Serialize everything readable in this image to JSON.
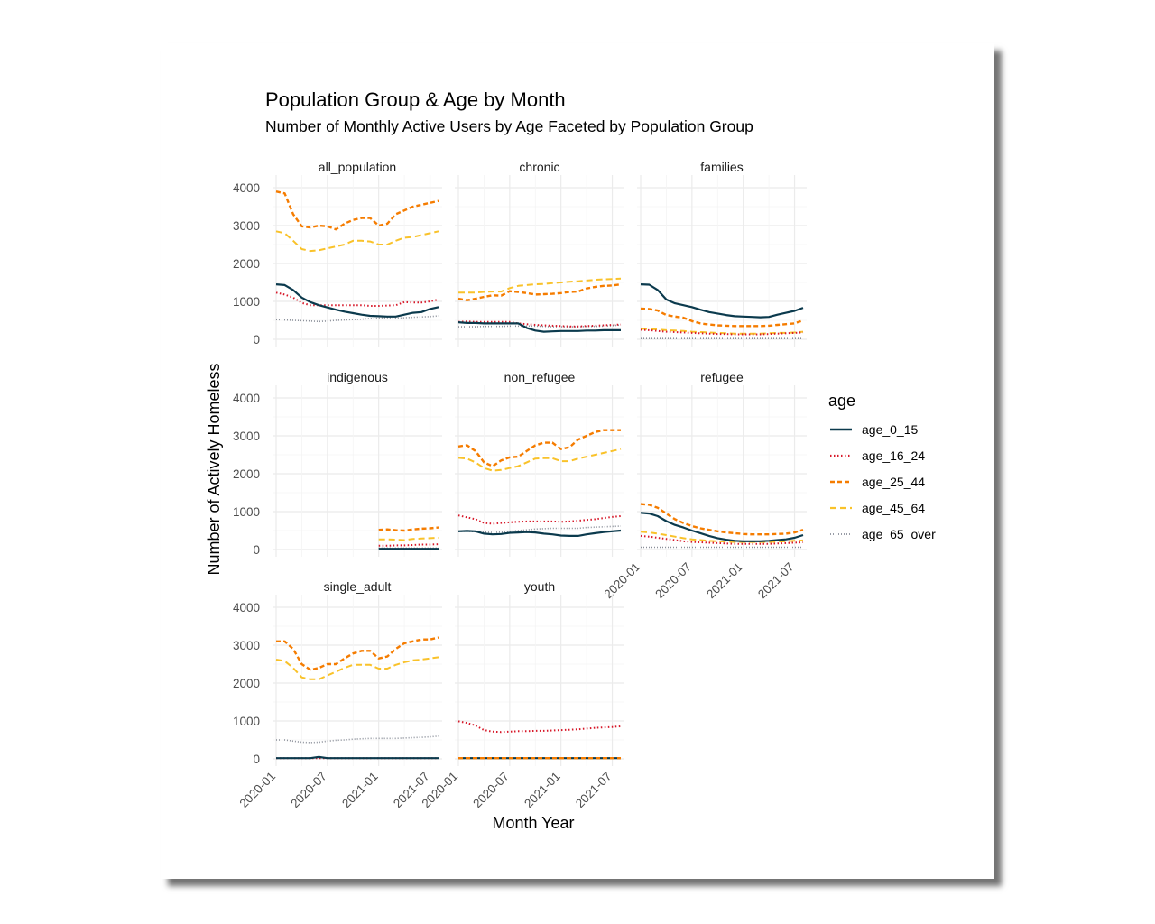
{
  "chart_data": {
    "type": "line",
    "title": "Population Group & Age by Month",
    "subtitle": "Number of Monthly Active Users by Age Faceted by Population Group",
    "xlabel": "Month Year",
    "ylabel": "Number of Actively Homeless",
    "x_ticks": [
      "2020-01",
      "2020-07",
      "2021-01",
      "2021-07"
    ],
    "y_ticks": [
      0,
      1000,
      2000,
      3000,
      4000
    ],
    "ylim": [
      0,
      4000
    ],
    "x_months": [
      "2020-01",
      "2020-02",
      "2020-03",
      "2020-04",
      "2020-05",
      "2020-06",
      "2020-07",
      "2020-08",
      "2020-09",
      "2020-10",
      "2020-11",
      "2020-12",
      "2021-01",
      "2021-02",
      "2021-03",
      "2021-04",
      "2021-05",
      "2021-06",
      "2021-07",
      "2021-08"
    ],
    "legend": {
      "title": "age",
      "position": "right",
      "entries": [
        {
          "name": "age_0_15",
          "color": "#0b3a4d",
          "dash": "solid"
        },
        {
          "name": "age_16_24",
          "color": "#d7192a",
          "dash": "dotted"
        },
        {
          "name": "age_25_44",
          "color": "#f57c00",
          "dash": "dashed"
        },
        {
          "name": "age_45_64",
          "color": "#f9c22a",
          "dash": "longdash"
        },
        {
          "name": "age_65_over",
          "color": "#8a8f99",
          "dash": "finedot"
        }
      ]
    },
    "facets": [
      {
        "name": "all_population",
        "series": {
          "age_0_15": [
            1450,
            1430,
            1300,
            1100,
            980,
            900,
            840,
            780,
            730,
            690,
            650,
            620,
            610,
            600,
            600,
            650,
            700,
            720,
            800,
            850
          ],
          "age_16_24": [
            1230,
            1180,
            1100,
            960,
            900,
            900,
            900,
            900,
            900,
            900,
            900,
            880,
            880,
            890,
            900,
            980,
            970,
            970,
            1000,
            1050
          ],
          "age_25_44": [
            3900,
            3850,
            3300,
            2980,
            2950,
            3000,
            2980,
            2900,
            3050,
            3150,
            3200,
            3200,
            3000,
            3050,
            3300,
            3400,
            3500,
            3550,
            3600,
            3650
          ],
          "age_45_64": [
            2850,
            2800,
            2600,
            2380,
            2330,
            2350,
            2400,
            2450,
            2500,
            2600,
            2600,
            2580,
            2500,
            2500,
            2600,
            2680,
            2700,
            2750,
            2800,
            2850
          ],
          "age_65_over": [
            520,
            510,
            500,
            490,
            480,
            470,
            480,
            500,
            510,
            520,
            530,
            550,
            560,
            570,
            560,
            570,
            580,
            590,
            600,
            620
          ]
        }
      },
      {
        "name": "chronic",
        "series": {
          "age_0_15": [
            450,
            430,
            430,
            420,
            420,
            420,
            420,
            420,
            300,
            230,
            200,
            210,
            220,
            220,
            220,
            230,
            230,
            240,
            240,
            240
          ],
          "age_16_24": [
            460,
            470,
            460,
            460,
            460,
            460,
            460,
            420,
            400,
            380,
            370,
            360,
            350,
            340,
            340,
            350,
            360,
            370,
            380,
            390
          ],
          "age_25_44": [
            1070,
            1030,
            1070,
            1120,
            1160,
            1150,
            1270,
            1250,
            1220,
            1180,
            1190,
            1200,
            1220,
            1250,
            1260,
            1340,
            1380,
            1410,
            1420,
            1450
          ],
          "age_45_64": [
            1230,
            1230,
            1230,
            1250,
            1260,
            1260,
            1350,
            1410,
            1430,
            1450,
            1460,
            1480,
            1500,
            1520,
            1530,
            1550,
            1570,
            1580,
            1590,
            1600
          ],
          "age_65_over": [
            330,
            330,
            330,
            340,
            340,
            340,
            350,
            350,
            350,
            350,
            340,
            330,
            330,
            330,
            330,
            340,
            340,
            350,
            360,
            380
          ]
        }
      },
      {
        "name": "families",
        "series": {
          "age_0_15": [
            1450,
            1440,
            1300,
            1050,
            950,
            900,
            850,
            780,
            720,
            680,
            640,
            610,
            600,
            590,
            580,
            590,
            650,
            700,
            750,
            830
          ],
          "age_16_24": [
            250,
            240,
            220,
            200,
            190,
            180,
            170,
            160,
            150,
            140,
            140,
            130,
            130,
            130,
            130,
            140,
            150,
            160,
            170,
            180
          ],
          "age_25_44": [
            810,
            800,
            760,
            640,
            600,
            570,
            480,
            420,
            390,
            370,
            360,
            350,
            350,
            350,
            350,
            360,
            380,
            400,
            420,
            500
          ],
          "age_45_64": [
            280,
            270,
            260,
            240,
            230,
            220,
            200,
            190,
            180,
            170,
            160,
            150,
            150,
            150,
            150,
            160,
            170,
            170,
            180,
            200
          ],
          "age_65_over": [
            20,
            20,
            20,
            20,
            20,
            20,
            20,
            20,
            20,
            20,
            20,
            20,
            20,
            20,
            20,
            20,
            20,
            20,
            20,
            20
          ]
        }
      },
      {
        "name": "indigenous",
        "series": {
          "age_0_15": [
            null,
            null,
            null,
            null,
            null,
            null,
            null,
            null,
            null,
            null,
            null,
            null,
            20,
            20,
            20,
            20,
            20,
            20,
            20,
            20
          ],
          "age_16_24": [
            null,
            null,
            null,
            null,
            null,
            null,
            null,
            null,
            null,
            null,
            null,
            null,
            100,
            100,
            110,
            110,
            120,
            130,
            130,
            140
          ],
          "age_25_44": [
            null,
            null,
            null,
            null,
            null,
            null,
            null,
            null,
            null,
            null,
            null,
            null,
            520,
            530,
            510,
            500,
            530,
            550,
            560,
            580
          ],
          "age_45_64": [
            null,
            null,
            null,
            null,
            null,
            null,
            null,
            null,
            null,
            null,
            null,
            null,
            270,
            270,
            260,
            250,
            280,
            290,
            300,
            310
          ],
          "age_65_over": [
            null,
            null,
            null,
            null,
            null,
            null,
            null,
            null,
            null,
            null,
            null,
            null,
            40,
            40,
            40,
            40,
            40,
            40,
            40,
            40
          ]
        }
      },
      {
        "name": "non_refugee",
        "series": {
          "age_0_15": [
            480,
            490,
            480,
            420,
            400,
            410,
            440,
            450,
            460,
            450,
            420,
            400,
            370,
            360,
            360,
            400,
            430,
            460,
            480,
            500
          ],
          "age_16_24": [
            900,
            850,
            800,
            700,
            680,
            700,
            720,
            730,
            740,
            740,
            740,
            740,
            730,
            740,
            760,
            780,
            800,
            830,
            860,
            880
          ],
          "age_25_44": [
            2720,
            2750,
            2600,
            2300,
            2200,
            2350,
            2430,
            2450,
            2600,
            2750,
            2820,
            2820,
            2650,
            2700,
            2900,
            3000,
            3100,
            3150,
            3150,
            3150
          ],
          "age_45_64": [
            2420,
            2400,
            2300,
            2150,
            2080,
            2100,
            2150,
            2200,
            2300,
            2400,
            2410,
            2410,
            2330,
            2330,
            2400,
            2450,
            2500,
            2550,
            2600,
            2650
          ],
          "age_65_over": [
            480,
            480,
            470,
            460,
            450,
            460,
            480,
            500,
            520,
            540,
            550,
            560,
            560,
            560,
            560,
            580,
            590,
            600,
            610,
            620
          ]
        }
      },
      {
        "name": "refugee",
        "series": {
          "age_0_15": [
            970,
            950,
            880,
            750,
            650,
            580,
            500,
            430,
            360,
            300,
            260,
            230,
            220,
            220,
            220,
            230,
            250,
            270,
            310,
            380
          ],
          "age_16_24": [
            360,
            340,
            310,
            280,
            250,
            220,
            200,
            190,
            180,
            170,
            160,
            150,
            150,
            150,
            150,
            150,
            160,
            170,
            180,
            190
          ],
          "age_25_44": [
            1200,
            1180,
            1100,
            950,
            800,
            700,
            620,
            560,
            520,
            480,
            450,
            430,
            410,
            400,
            400,
            400,
            410,
            420,
            450,
            520
          ],
          "age_45_64": [
            470,
            450,
            420,
            380,
            340,
            300,
            270,
            250,
            230,
            220,
            210,
            200,
            200,
            200,
            200,
            200,
            210,
            220,
            230,
            240
          ],
          "age_65_over": [
            60,
            60,
            60,
            60,
            60,
            60,
            60,
            60,
            60,
            60,
            60,
            60,
            60,
            60,
            60,
            60,
            60,
            60,
            60,
            60
          ]
        }
      },
      {
        "name": "single_adult",
        "series": {
          "age_0_15": [
            20,
            20,
            20,
            20,
            20,
            50,
            20,
            20,
            20,
            20,
            20,
            20,
            20,
            20,
            20,
            20,
            20,
            20,
            20,
            20
          ],
          "age_16_24": [
            20,
            20,
            20,
            20,
            20,
            20,
            20,
            20,
            20,
            20,
            20,
            20,
            20,
            20,
            20,
            20,
            20,
            20,
            20,
            20
          ],
          "age_25_44": [
            3100,
            3100,
            2900,
            2500,
            2350,
            2400,
            2500,
            2500,
            2650,
            2780,
            2850,
            2850,
            2650,
            2700,
            2900,
            3050,
            3100,
            3150,
            3150,
            3200
          ],
          "age_45_64": [
            2620,
            2580,
            2400,
            2150,
            2100,
            2100,
            2200,
            2300,
            2400,
            2480,
            2480,
            2480,
            2380,
            2380,
            2480,
            2550,
            2600,
            2620,
            2650,
            2680
          ],
          "age_65_over": [
            500,
            500,
            470,
            440,
            430,
            440,
            470,
            490,
            500,
            520,
            530,
            540,
            540,
            540,
            540,
            550,
            560,
            570,
            580,
            600
          ]
        }
      },
      {
        "name": "youth",
        "series": {
          "age_0_15": [
            20,
            20,
            20,
            20,
            20,
            20,
            20,
            20,
            20,
            20,
            20,
            20,
            20,
            20,
            20,
            20,
            20,
            20,
            20,
            20
          ],
          "age_16_24": [
            990,
            950,
            880,
            760,
            720,
            710,
            720,
            730,
            730,
            740,
            740,
            750,
            760,
            770,
            780,
            800,
            820,
            830,
            840,
            860
          ],
          "age_25_44": [
            20,
            20,
            20,
            20,
            20,
            20,
            20,
            20,
            20,
            20,
            20,
            20,
            20,
            20,
            20,
            20,
            20,
            20,
            20,
            20
          ],
          "age_45_64": [
            20,
            20,
            20,
            20,
            20,
            20,
            20,
            20,
            20,
            20,
            20,
            20,
            20,
            20,
            20,
            20,
            20,
            20,
            20,
            20
          ],
          "age_65_over": [
            20,
            20,
            20,
            20,
            20,
            20,
            20,
            20,
            20,
            20,
            20,
            20,
            20,
            20,
            20,
            20,
            20,
            20,
            20,
            20
          ]
        }
      }
    ]
  }
}
